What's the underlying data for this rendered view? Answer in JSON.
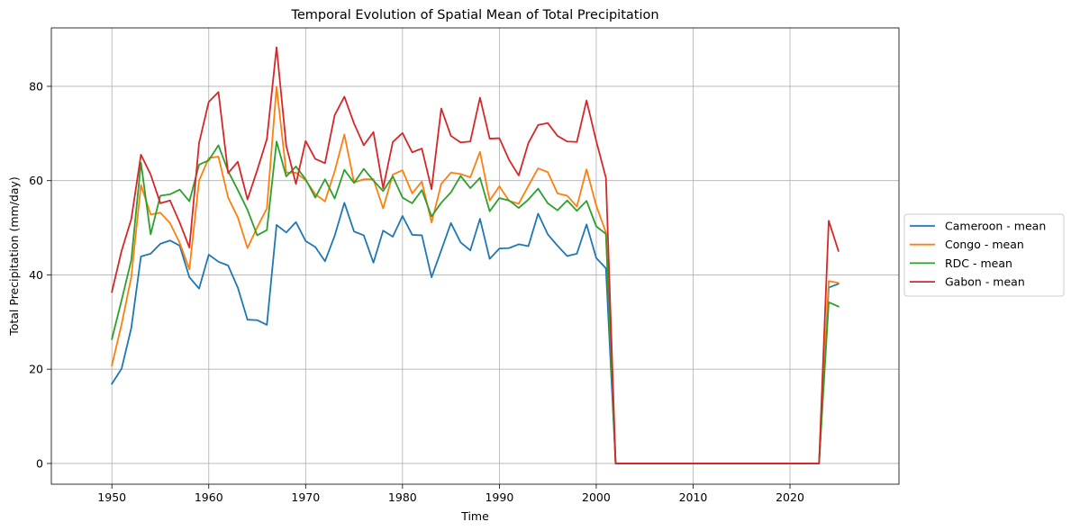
{
  "chart_data": {
    "type": "line",
    "title": "Temporal Evolution of Spatial Mean of Total Precipitation",
    "xlabel": "Time",
    "ylabel": "Total Precipitation (mm/day)",
    "xlim": [
      1943.75,
      2031.25
    ],
    "ylim": [
      -4.4,
      92.4
    ],
    "xticks": [
      1950,
      1960,
      1970,
      1980,
      1990,
      2000,
      2010,
      2020
    ],
    "yticks": [
      0,
      20,
      40,
      60,
      80
    ],
    "grid": true,
    "legend_position": "outside-right",
    "x": [
      1950,
      1951,
      1952,
      1953,
      1954,
      1955,
      1956,
      1957,
      1958,
      1959,
      1960,
      1961,
      1962,
      1963,
      1964,
      1965,
      1966,
      1967,
      1968,
      1969,
      1970,
      1971,
      1972,
      1973,
      1974,
      1975,
      1976,
      1977,
      1978,
      1979,
      1980,
      1981,
      1982,
      1983,
      1984,
      1985,
      1986,
      1987,
      1988,
      1989,
      1990,
      1991,
      1992,
      1993,
      1994,
      1995,
      1996,
      1997,
      1998,
      1999,
      2000,
      2001,
      2002,
      2003,
      2004,
      2005,
      2006,
      2007,
      2008,
      2009,
      2010,
      2011,
      2012,
      2013,
      2014,
      2015,
      2016,
      2017,
      2018,
      2019,
      2020,
      2021,
      2022,
      2023,
      2024,
      2025
    ],
    "series": [
      {
        "name": "Cameroon - mean",
        "color": "#1f77b4",
        "values": [
          16.9,
          20.1,
          28.7,
          43.9,
          44.5,
          46.6,
          47.3,
          46.2,
          39.5,
          37.1,
          44.3,
          42.8,
          42.0,
          37.3,
          30.5,
          30.4,
          29.4,
          50.6,
          49.0,
          51.2,
          47.2,
          45.9,
          42.9,
          48.3,
          55.3,
          49.2,
          48.4,
          42.6,
          49.4,
          48.1,
          52.5,
          48.5,
          48.4,
          39.5,
          45.2,
          51.0,
          46.9,
          45.2,
          51.9,
          43.4,
          45.6,
          45.7,
          46.5,
          46.1,
          53.0,
          48.6,
          46.2,
          44.0,
          44.5,
          50.7,
          43.6,
          41.4,
          0,
          0,
          0,
          0,
          0,
          0,
          0,
          0,
          0,
          0,
          0,
          0,
          0,
          0,
          0,
          0,
          0,
          0,
          0,
          0,
          0,
          0,
          37.3,
          38.1
        ]
      },
      {
        "name": "Congo - mean",
        "color": "#ff7f0e",
        "values": [
          20.8,
          29.5,
          39.5,
          59.1,
          52.8,
          53.2,
          51.0,
          46.8,
          41.2,
          60.0,
          64.8,
          65.1,
          56.4,
          52.2,
          45.7,
          50.1,
          54.1,
          79.9,
          61.7,
          61.7,
          60.1,
          57.1,
          55.6,
          62.0,
          69.8,
          59.6,
          60.3,
          60.3,
          54.1,
          61.3,
          62.2,
          57.3,
          59.8,
          51.1,
          59.3,
          61.7,
          61.4,
          60.7,
          66.1,
          55.8,
          58.8,
          55.7,
          55.1,
          58.9,
          62.6,
          61.8,
          57.3,
          56.8,
          54.5,
          62.4,
          54.7,
          49.0,
          0,
          0,
          0,
          0,
          0,
          0,
          0,
          0,
          0,
          0,
          0,
          0,
          0,
          0,
          0,
          0,
          0,
          0,
          0,
          0,
          0,
          0,
          38.7,
          38.3
        ]
      },
      {
        "name": "RDC - mean",
        "color": "#2ca02c",
        "values": [
          26.4,
          34.6,
          43.1,
          63.8,
          48.6,
          56.8,
          57.1,
          58.1,
          55.6,
          63.4,
          64.3,
          67.5,
          62.0,
          58.0,
          53.8,
          48.4,
          49.5,
          68.3,
          60.9,
          63.0,
          60.3,
          56.4,
          60.3,
          56.2,
          62.3,
          59.5,
          62.5,
          60.0,
          57.8,
          60.9,
          56.4,
          55.2,
          58.0,
          52.4,
          55.3,
          57.5,
          61.0,
          58.4,
          60.6,
          53.5,
          56.3,
          55.8,
          54.2,
          56.0,
          58.3,
          55.2,
          53.7,
          55.8,
          53.6,
          55.7,
          50.3,
          48.7,
          0,
          0,
          0,
          0,
          0,
          0,
          0,
          0,
          0,
          0,
          0,
          0,
          0,
          0,
          0,
          0,
          0,
          0,
          0,
          0,
          0,
          0,
          34.2,
          33.3
        ]
      },
      {
        "name": "Gabon - mean",
        "color": "#d62728",
        "values": [
          36.4,
          45.1,
          51.8,
          65.5,
          61.3,
          55.2,
          55.8,
          51.1,
          45.8,
          68.0,
          76.7,
          78.8,
          61.6,
          64.0,
          56.0,
          62.2,
          68.8,
          88.3,
          67.4,
          59.3,
          68.4,
          64.6,
          63.7,
          73.9,
          77.8,
          72.1,
          67.5,
          70.3,
          58.4,
          68.2,
          70.1,
          66.0,
          66.8,
          58.2,
          75.3,
          69.5,
          68.1,
          68.3,
          77.6,
          68.9,
          69.0,
          64.4,
          61.1,
          68.0,
          71.8,
          72.2,
          69.5,
          68.3,
          68.2,
          77.0,
          68.4,
          60.6,
          0,
          0,
          0,
          0,
          0,
          0,
          0,
          0,
          0,
          0,
          0,
          0,
          0,
          0,
          0,
          0,
          0,
          0,
          0,
          0,
          0,
          0,
          51.5,
          45.1
        ]
      }
    ]
  }
}
